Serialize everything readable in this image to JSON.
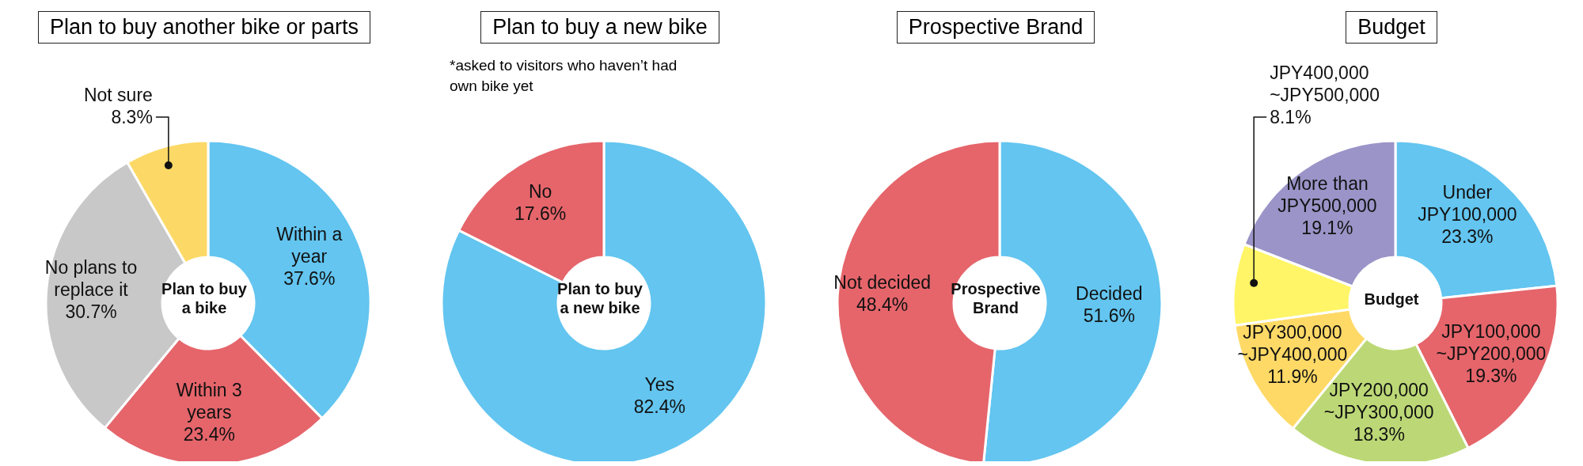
{
  "chart_data": [
    {
      "type": "donut",
      "title": "Plan to buy another bike or parts",
      "annotations": [
        "Plan to buy a bike"
      ],
      "categories": [
        "Within a year",
        "Within 3 years",
        "No plans to replace it",
        "Not sure"
      ],
      "values": [
        37.6,
        23.4,
        30.7,
        8.3
      ],
      "value_labels": [
        "37.6%",
        "23.4%",
        "30.7%",
        "8.3%"
      ],
      "colors": [
        "#63c5f0",
        "#e5656b",
        "#c8c8c8",
        "#fcd966"
      ]
    },
    {
      "type": "donut",
      "title": "Plan to buy a new bike",
      "subtitle": "*asked to visitors who haven’t had own bike yet",
      "annotations": [
        "Plan to buy a new bike"
      ],
      "categories": [
        "Yes",
        "No"
      ],
      "values": [
        82.4,
        17.6
      ],
      "value_labels": [
        "82.4%",
        "17.6%"
      ],
      "colors": [
        "#63c5f0",
        "#e5656b"
      ]
    },
    {
      "type": "donut",
      "title": "Prospective Brand",
      "annotations": [
        "Prospective Brand"
      ],
      "categories": [
        "Decided",
        "Not decided"
      ],
      "values": [
        51.6,
        48.4
      ],
      "value_labels": [
        "51.6%",
        "48.4%"
      ],
      "colors": [
        "#63c5f0",
        "#e5656b"
      ]
    },
    {
      "type": "donut",
      "title": "Budget",
      "annotations": [
        "Budget"
      ],
      "categories": [
        "Under JPY100,000",
        "JPY100,000 ~JPY200,000",
        "JPY200,000 ~JPY300,000",
        "JPY300,000 ~JPY400,000",
        "JPY400,000 ~JPY500,000",
        "More than JPY500,000"
      ],
      "values": [
        23.3,
        19.3,
        18.3,
        11.9,
        8.1,
        19.1
      ],
      "value_labels": [
        "23.3%",
        "19.3%",
        "18.3%",
        "11.9%",
        "8.1%",
        "19.1%"
      ],
      "colors": [
        "#63c5f0",
        "#e5656b",
        "#bcd876",
        "#ffd966",
        "#fff566",
        "#9b94c8"
      ]
    }
  ]
}
